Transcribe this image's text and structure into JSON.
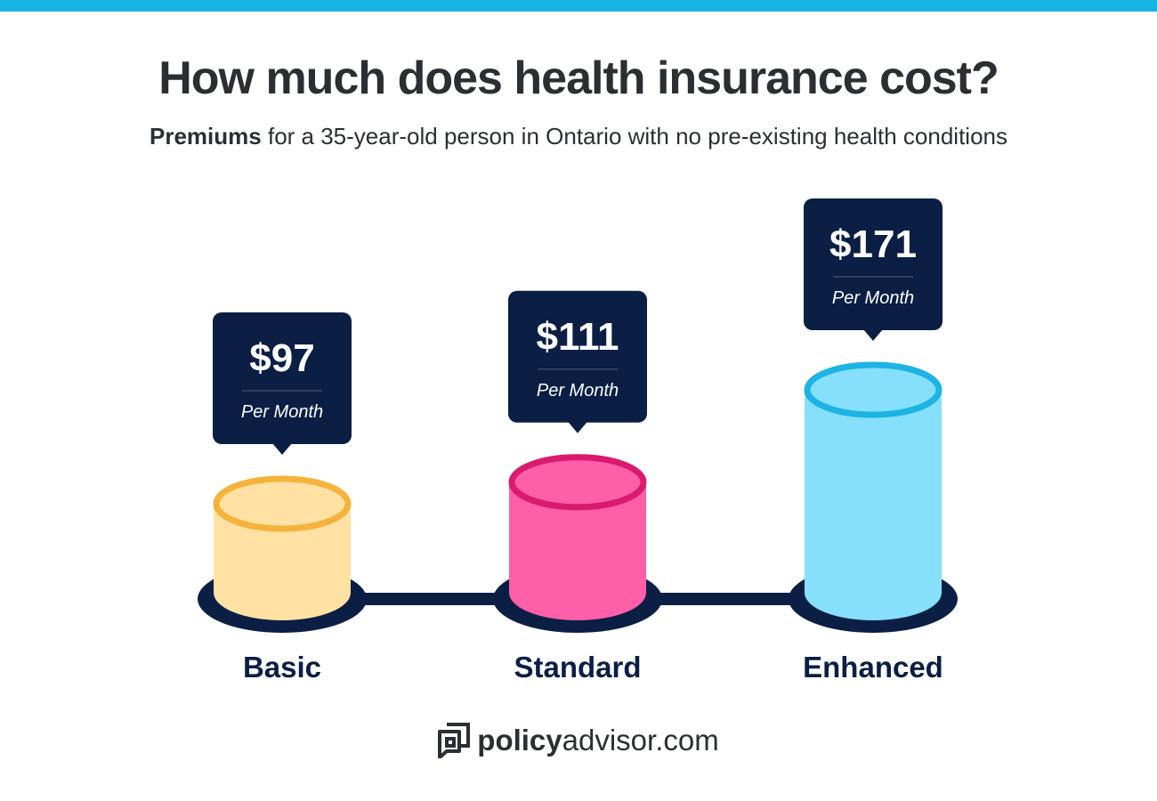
{
  "header": {
    "title": "How much does health insurance cost?",
    "subtitle_bold": "Premiums",
    "subtitle_rest": " for a 35-year-old person in Ontario with no pre-existing health conditions"
  },
  "chart_data": {
    "type": "bar",
    "categories": [
      "Basic",
      "Standard",
      "Enhanced"
    ],
    "values": [
      97,
      111,
      171
    ],
    "value_labels": [
      "$97",
      "$111",
      "$171"
    ],
    "unit_label": "Per Month",
    "colors": {
      "body": [
        "#ffe1a3",
        "#ff5ea8",
        "#86e0fc"
      ],
      "rim": [
        "#f5b33c",
        "#d91a6f",
        "#1db3e4"
      ],
      "base": "#0b1f45",
      "tooltip": "#0b1f45"
    }
  },
  "footer": {
    "brand_bold": "policy",
    "brand_rest": "advisor.com"
  }
}
